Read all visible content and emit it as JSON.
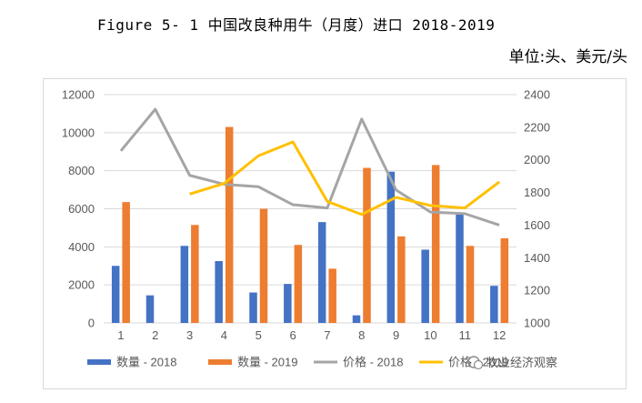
{
  "figure_title": "Figure 5- 1 中国改良种用牛（月度）进口 2018-2019",
  "unit_label": "单位:头、美元/头",
  "watermark": "牧业经济观察",
  "colors": {
    "qty2018": "#4472C4",
    "qty2019": "#ED7D31",
    "price2018": "#A5A5A5",
    "price2019": "#FFC000",
    "grid": "#d9d9d9",
    "axis_text": "#595959"
  },
  "chart_data": {
    "type": "bar+line",
    "categories": [
      "1",
      "2",
      "3",
      "4",
      "5",
      "6",
      "7",
      "8",
      "9",
      "10",
      "11",
      "12"
    ],
    "y_left": {
      "ylim": [
        0,
        12000
      ],
      "ticks": [
        "0",
        "2000",
        "4000",
        "6000",
        "8000",
        "10000",
        "12000"
      ]
    },
    "y_right": {
      "ylim": [
        1000,
        2400
      ],
      "ticks": [
        "1000",
        "1200",
        "1400",
        "1600",
        "1800",
        "2000",
        "2200",
        "2400"
      ]
    },
    "grid": true,
    "legend_position": "bottom",
    "series": [
      {
        "name": "数量 - 2018",
        "type": "bar",
        "axis": "left",
        "values": [
          3000,
          1450,
          4050,
          3250,
          1600,
          2050,
          5300,
          400,
          7950,
          3850,
          5700,
          1950
        ]
      },
      {
        "name": "数量 - 2019",
        "type": "bar",
        "axis": "left",
        "values": [
          6350,
          null,
          5150,
          10300,
          6000,
          4100,
          2850,
          8150,
          4550,
          8300,
          4050,
          4450
        ]
      },
      {
        "name": "价格 - 2018",
        "type": "line",
        "axis": "right",
        "values": [
          2055,
          2310,
          1905,
          1850,
          1835,
          1725,
          1705,
          2250,
          1815,
          1680,
          1670,
          1600
        ]
      },
      {
        "name": "价格 - 2019",
        "type": "line",
        "axis": "right",
        "values": [
          null,
          null,
          1790,
          1855,
          2025,
          2110,
          1745,
          1665,
          1770,
          1720,
          1705,
          1865
        ]
      }
    ]
  }
}
